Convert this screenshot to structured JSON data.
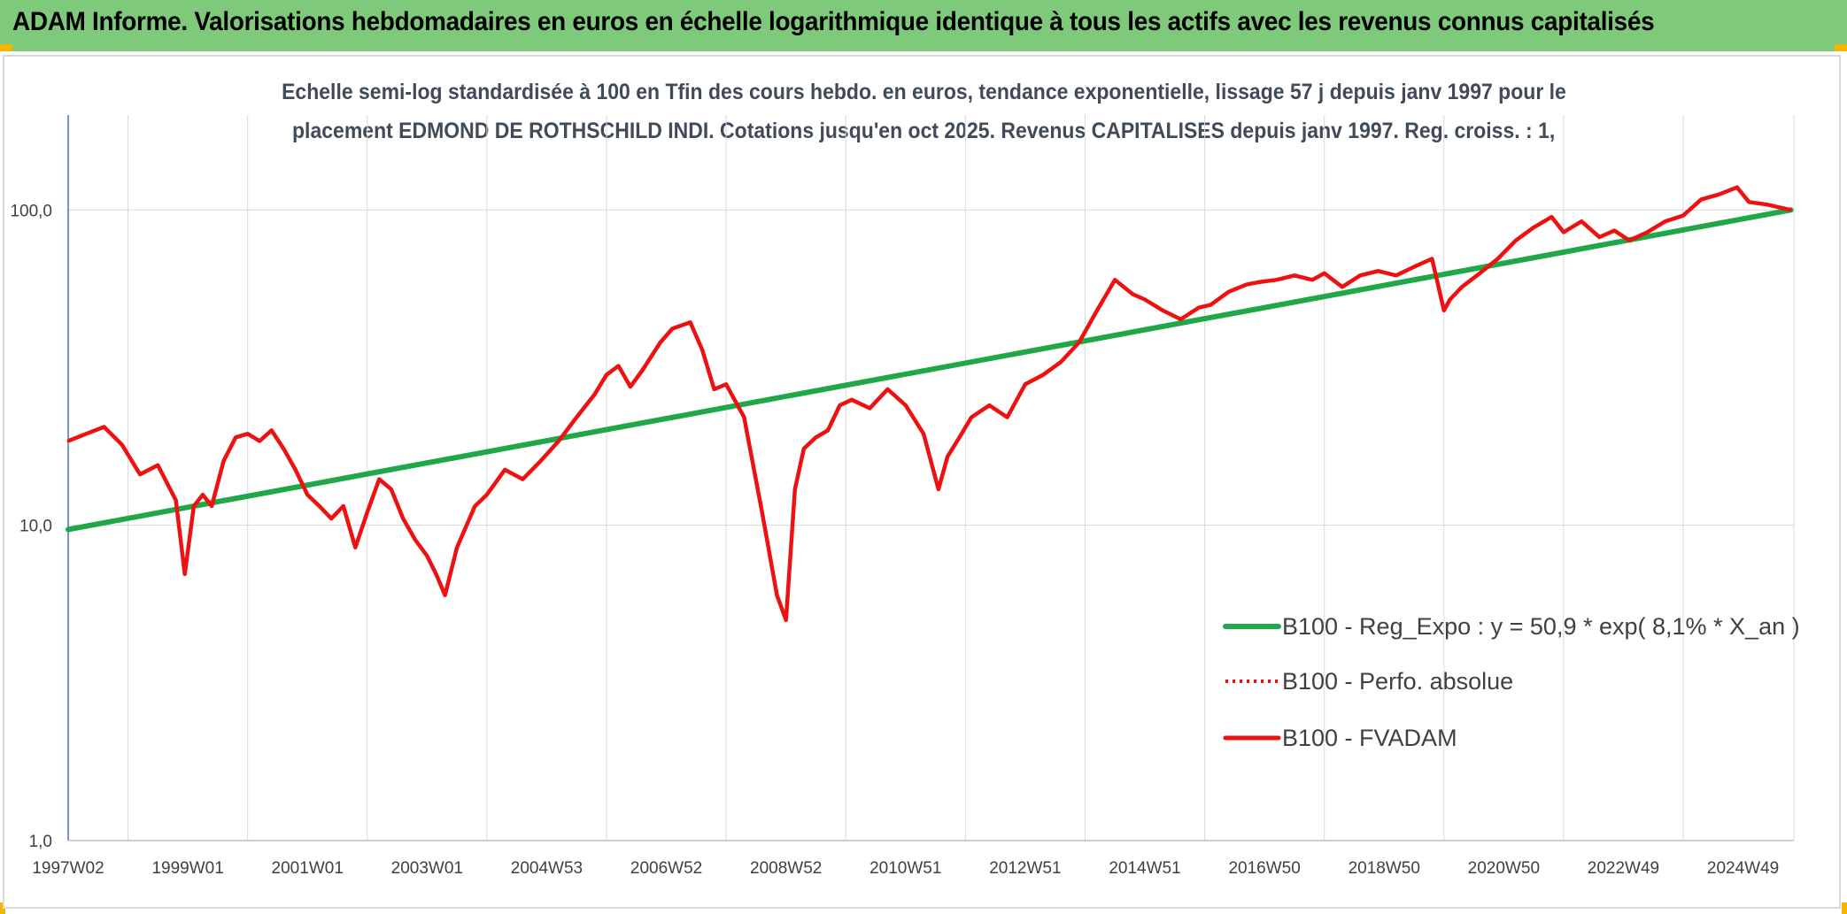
{
  "header": {
    "title": "ADAM Informe. Valorisations hebdomadaires en euros en échelle logarithmique identique à tous les actifs avec les revenus connus capitalisés"
  },
  "chart_data": {
    "type": "line",
    "title_line1": "Echelle semi-log standardisée à 100 en Tfin des cours hebdo. en euros, tendance exponentielle, lissage 57 j depuis janv 1997 pour le",
    "title_line2": "placement EDMOND DE ROTHSCHILD INDI. Cotations jusqu'en oct 2025. Revenus CAPITALISES depuis janv 1997. Reg. croiss. : 1,",
    "y_scale": "log",
    "ylim": [
      1,
      200
    ],
    "y_ticks": [
      "1,0",
      "10,0",
      "100,0"
    ],
    "y_tick_values": [
      1,
      10,
      100
    ],
    "x_tick_labels": [
      "1997W02",
      "1999W01",
      "2001W01",
      "2003W01",
      "2004W53",
      "2006W52",
      "2008W52",
      "2010W51",
      "2012W51",
      "2014W51",
      "2016W50",
      "2018W50",
      "2020W50",
      "2022W49",
      "2024W49"
    ],
    "x_tick_dates": [
      1997.0,
      1999.0,
      2001.0,
      2003.0,
      2005.0,
      2007.0,
      2009.0,
      2011.0,
      2013.0,
      2015.0,
      2017.0,
      2019.0,
      2021.0,
      2023.0,
      2025.0
    ],
    "xlim": [
      1997.0,
      2025.85
    ],
    "grid": true,
    "legend_position": "right",
    "colors": {
      "trend": "#1fa848",
      "fvadam": "#ee1111",
      "perfo": "#ee1111",
      "axis": "#4472c4",
      "grid": "#d9d9d9"
    },
    "series": [
      {
        "name": "B100 - Reg_Expo : y = 50,9 * exp( 8,1% *  X_an )",
        "style": "solid-thick",
        "x": [
          1997.0,
          2025.8
        ],
        "y": [
          9.7,
          100.0
        ]
      },
      {
        "name": "B100 - Perfo. absolue",
        "style": "dotted",
        "x": [],
        "y": []
      },
      {
        "name": "B100 - FVADAM",
        "style": "solid",
        "x": [
          1997.0,
          1997.3,
          1997.6,
          1997.9,
          1998.2,
          1998.5,
          1998.8,
          1998.95,
          1999.1,
          1999.25,
          1999.4,
          1999.6,
          1999.8,
          2000.0,
          2000.2,
          2000.4,
          2000.6,
          2000.8,
          2001.0,
          2001.2,
          2001.4,
          2001.6,
          2001.8,
          2002.0,
          2002.2,
          2002.4,
          2002.6,
          2002.8,
          2003.0,
          2003.15,
          2003.3,
          2003.5,
          2003.8,
          2004.0,
          2004.3,
          2004.6,
          2004.9,
          2005.2,
          2005.5,
          2005.8,
          2006.0,
          2006.2,
          2006.4,
          2006.6,
          2006.9,
          2007.1,
          2007.4,
          2007.6,
          2007.8,
          2008.0,
          2008.3,
          2008.6,
          2008.85,
          2009.0,
          2009.15,
          2009.3,
          2009.5,
          2009.7,
          2009.9,
          2010.1,
          2010.4,
          2010.7,
          2011.0,
          2011.3,
          2011.55,
          2011.7,
          2011.9,
          2012.1,
          2012.4,
          2012.7,
          2013.0,
          2013.3,
          2013.6,
          2013.9,
          2014.2,
          2014.5,
          2014.8,
          2015.0,
          2015.3,
          2015.6,
          2015.9,
          2016.1,
          2016.4,
          2016.7,
          2016.9,
          2017.2,
          2017.5,
          2017.8,
          2018.0,
          2018.3,
          2018.6,
          2018.9,
          2019.2,
          2019.5,
          2019.8,
          2020.0,
          2020.1,
          2020.3,
          2020.6,
          2020.9,
          2021.2,
          2021.5,
          2021.8,
          2022.0,
          2022.3,
          2022.6,
          2022.85,
          2023.1,
          2023.4,
          2023.7,
          2024.0,
          2024.3,
          2024.6,
          2024.9,
          2025.1,
          2025.4,
          2025.8
        ],
        "y": [
          18.5,
          19.5,
          20.5,
          18.0,
          14.5,
          15.5,
          12.0,
          7.0,
          11.5,
          12.5,
          11.5,
          16.0,
          19.0,
          19.5,
          18.5,
          20.0,
          17.5,
          15.0,
          12.5,
          11.5,
          10.5,
          11.5,
          8.5,
          11.0,
          14.0,
          13.0,
          10.5,
          9.0,
          8.0,
          7.0,
          6.0,
          8.5,
          11.5,
          12.5,
          15.0,
          14.0,
          16.0,
          18.5,
          22.0,
          26.0,
          30.0,
          32.0,
          27.5,
          31.0,
          38.0,
          42.0,
          44.0,
          36.0,
          27.0,
          28.0,
          22.0,
          11.0,
          6.0,
          5.0,
          13.0,
          17.5,
          19.0,
          20.0,
          24.0,
          25.0,
          23.5,
          27.0,
          24.0,
          19.5,
          13.0,
          16.5,
          19.0,
          22.0,
          24.0,
          22.0,
          28.0,
          30.0,
          33.0,
          38.0,
          48.0,
          60.0,
          54.0,
          52.0,
          48.0,
          45.0,
          49.0,
          50.0,
          55.0,
          58.0,
          59.0,
          60.0,
          62.0,
          60.0,
          63.0,
          57.0,
          62.0,
          64.0,
          62.0,
          66.0,
          70.0,
          48.0,
          52.0,
          57.0,
          63.0,
          70.0,
          80.0,
          88.0,
          95.0,
          85.0,
          92.0,
          82.0,
          86.0,
          80.0,
          85.0,
          92.0,
          96.0,
          108.0,
          112.0,
          118.0,
          106.0,
          104.0,
          100.0
        ]
      }
    ]
  }
}
